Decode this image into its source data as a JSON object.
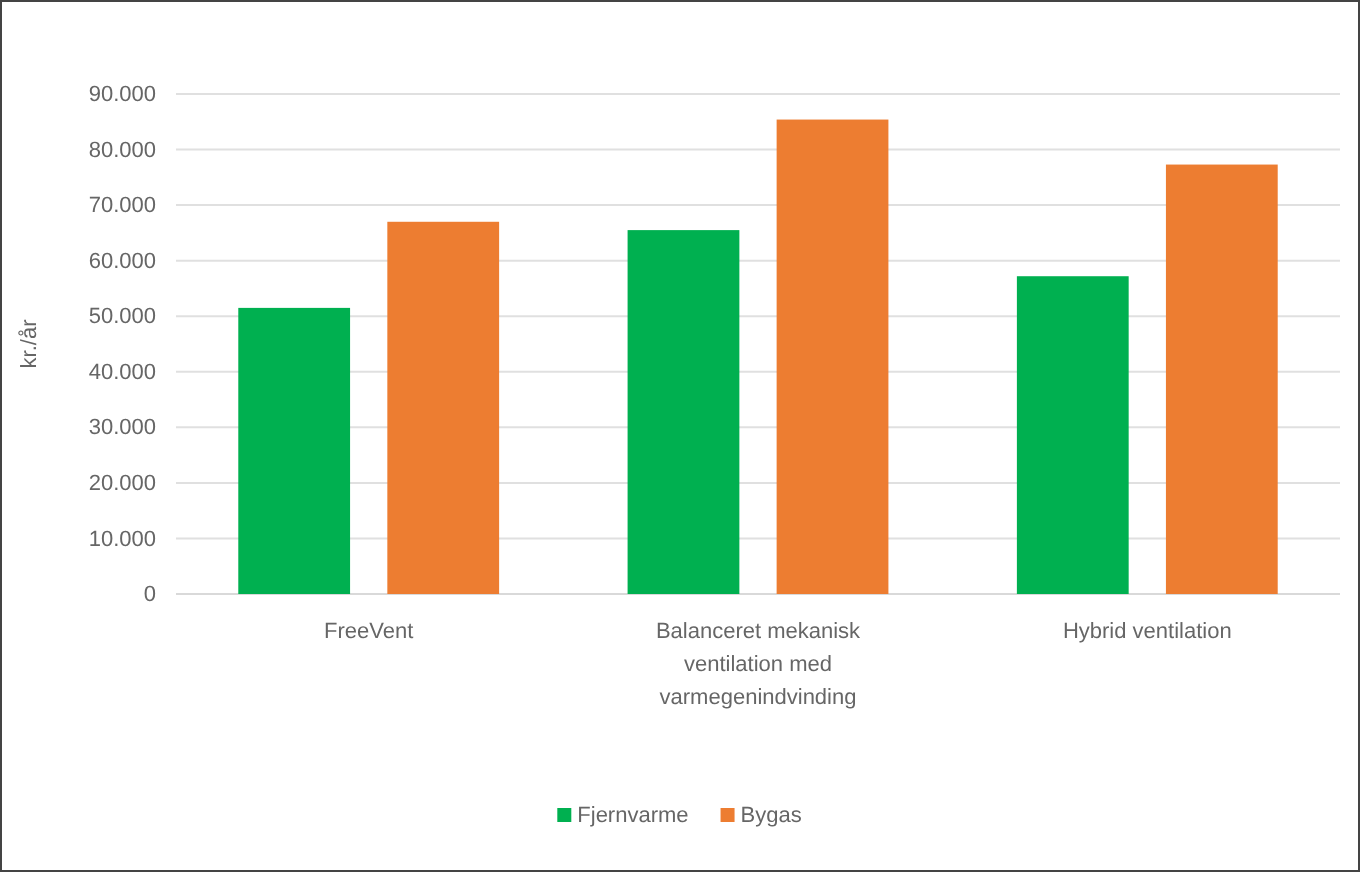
{
  "chart_data": {
    "type": "bar",
    "ylabel": "kr./år",
    "categories": [
      "FreeVent",
      "Balanceret mekanisk ventilation med varmegenindvinding",
      "Hybrid ventilation"
    ],
    "series": [
      {
        "name": "Fjernvarme",
        "color": "#00b050",
        "values": [
          51500,
          65500,
          57200
        ]
      },
      {
        "name": "Bygas",
        "color": "#ed7d31",
        "values": [
          67000,
          85400,
          77300
        ]
      }
    ],
    "ylim": [
      0,
      90000
    ],
    "yticks": [
      {
        "value": 0,
        "label": "0"
      },
      {
        "value": 10000,
        "label": "10.000"
      },
      {
        "value": 20000,
        "label": "20.000"
      },
      {
        "value": 30000,
        "label": "30.000"
      },
      {
        "value": 40000,
        "label": "40.000"
      },
      {
        "value": 50000,
        "label": "50.000"
      },
      {
        "value": 60000,
        "label": "60.000"
      },
      {
        "value": 70000,
        "label": "70.000"
      },
      {
        "value": 80000,
        "label": "80.000"
      },
      {
        "value": 90000,
        "label": "90.000"
      }
    ],
    "grid": "y",
    "legend": "bottom"
  }
}
